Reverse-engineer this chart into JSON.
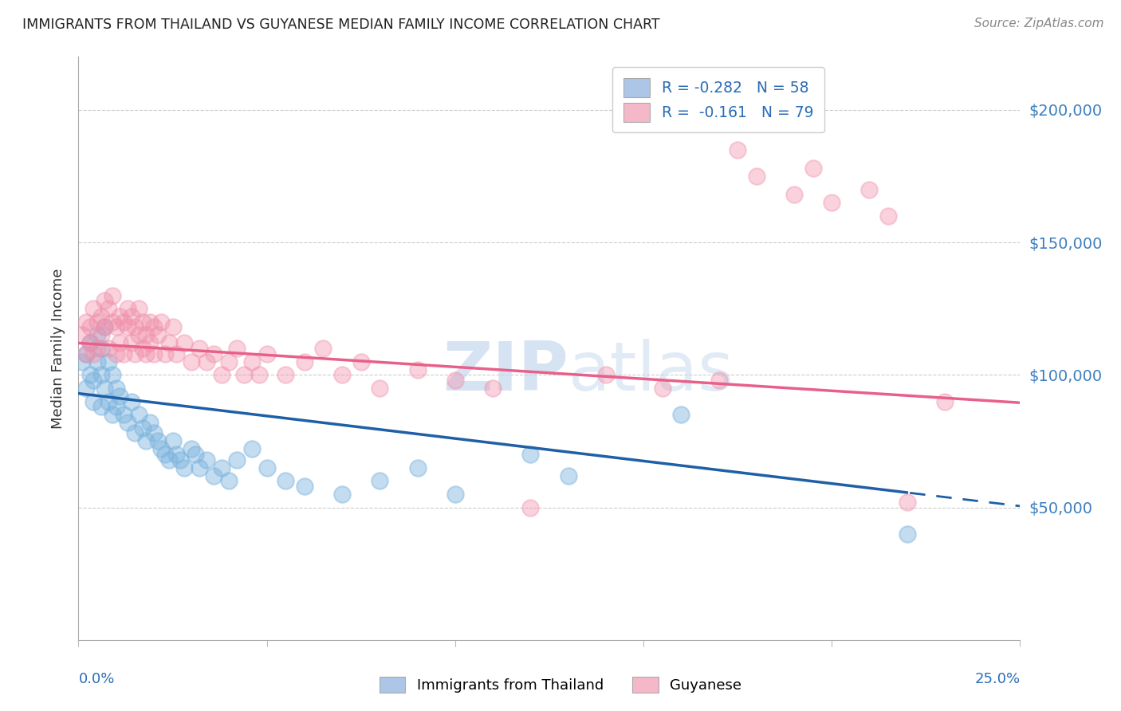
{
  "title": "IMMIGRANTS FROM THAILAND VS GUYANESE MEDIAN FAMILY INCOME CORRELATION CHART",
  "source": "Source: ZipAtlas.com",
  "ylabel": "Median Family Income",
  "ytick_labels": [
    "$50,000",
    "$100,000",
    "$150,000",
    "$200,000"
  ],
  "ytick_values": [
    50000,
    100000,
    150000,
    200000
  ],
  "ylim": [
    0,
    220000
  ],
  "xlim": [
    0.0,
    0.25
  ],
  "watermark_zip": "ZIP",
  "watermark_atlas": "atlas",
  "legend_entries": [
    {
      "label_r": "R = -0.282",
      "label_n": "N = 58",
      "color": "#adc6e8"
    },
    {
      "label_r": "R =  -0.161",
      "label_n": "N = 79",
      "color": "#f4b8c8"
    }
  ],
  "legend_bottom": [
    "Immigrants from Thailand",
    "Guyanese"
  ],
  "legend_bottom_colors": [
    "#adc6e8",
    "#f4b8c8"
  ],
  "thailand_color": "#7ab3de",
  "guyanese_color": "#f090aa",
  "thailand_line_color": "#1f5fa6",
  "guyanese_line_color": "#e8608a",
  "R_thailand": -0.282,
  "N_thailand": 58,
  "R_guyanese": -0.161,
  "N_guyanese": 79,
  "thailand_intercept": 93000,
  "thailand_slope": -170000,
  "guyanese_intercept": 112000,
  "guyanese_slope": -90000,
  "thailand_x": [
    0.001,
    0.002,
    0.002,
    0.003,
    0.003,
    0.004,
    0.004,
    0.005,
    0.005,
    0.006,
    0.006,
    0.006,
    0.007,
    0.007,
    0.008,
    0.008,
    0.009,
    0.009,
    0.01,
    0.01,
    0.011,
    0.012,
    0.013,
    0.014,
    0.015,
    0.016,
    0.017,
    0.018,
    0.019,
    0.02,
    0.021,
    0.022,
    0.023,
    0.024,
    0.025,
    0.026,
    0.027,
    0.028,
    0.03,
    0.031,
    0.032,
    0.034,
    0.036,
    0.038,
    0.04,
    0.042,
    0.046,
    0.05,
    0.055,
    0.06,
    0.07,
    0.08,
    0.09,
    0.1,
    0.12,
    0.13,
    0.16,
    0.22
  ],
  "thailand_y": [
    105000,
    108000,
    95000,
    112000,
    100000,
    98000,
    90000,
    115000,
    105000,
    110000,
    100000,
    88000,
    118000,
    95000,
    105000,
    90000,
    100000,
    85000,
    95000,
    88000,
    92000,
    85000,
    82000,
    90000,
    78000,
    85000,
    80000,
    75000,
    82000,
    78000,
    75000,
    72000,
    70000,
    68000,
    75000,
    70000,
    68000,
    65000,
    72000,
    70000,
    65000,
    68000,
    62000,
    65000,
    60000,
    68000,
    72000,
    65000,
    60000,
    58000,
    55000,
    60000,
    65000,
    55000,
    70000,
    62000,
    85000,
    40000
  ],
  "guyanese_x": [
    0.001,
    0.002,
    0.002,
    0.003,
    0.003,
    0.004,
    0.004,
    0.005,
    0.005,
    0.006,
    0.006,
    0.007,
    0.007,
    0.008,
    0.008,
    0.009,
    0.009,
    0.01,
    0.01,
    0.011,
    0.011,
    0.012,
    0.012,
    0.013,
    0.013,
    0.014,
    0.014,
    0.015,
    0.015,
    0.016,
    0.016,
    0.017,
    0.017,
    0.018,
    0.018,
    0.019,
    0.019,
    0.02,
    0.02,
    0.021,
    0.022,
    0.023,
    0.024,
    0.025,
    0.026,
    0.028,
    0.03,
    0.032,
    0.034,
    0.036,
    0.038,
    0.04,
    0.042,
    0.044,
    0.046,
    0.048,
    0.05,
    0.055,
    0.06,
    0.065,
    0.07,
    0.075,
    0.08,
    0.09,
    0.1,
    0.11,
    0.12,
    0.14,
    0.155,
    0.17,
    0.175,
    0.18,
    0.19,
    0.195,
    0.2,
    0.21,
    0.215,
    0.22,
    0.23
  ],
  "guyanese_y": [
    115000,
    120000,
    108000,
    118000,
    112000,
    125000,
    108000,
    120000,
    110000,
    122000,
    115000,
    128000,
    118000,
    125000,
    110000,
    130000,
    120000,
    118000,
    108000,
    122000,
    112000,
    120000,
    108000,
    118000,
    125000,
    112000,
    122000,
    108000,
    118000,
    115000,
    125000,
    110000,
    120000,
    115000,
    108000,
    120000,
    112000,
    118000,
    108000,
    115000,
    120000,
    108000,
    112000,
    118000,
    108000,
    112000,
    105000,
    110000,
    105000,
    108000,
    100000,
    105000,
    110000,
    100000,
    105000,
    100000,
    108000,
    100000,
    105000,
    110000,
    100000,
    105000,
    95000,
    102000,
    98000,
    95000,
    50000,
    100000,
    95000,
    98000,
    185000,
    175000,
    168000,
    178000,
    165000,
    170000,
    160000,
    52000,
    90000
  ]
}
